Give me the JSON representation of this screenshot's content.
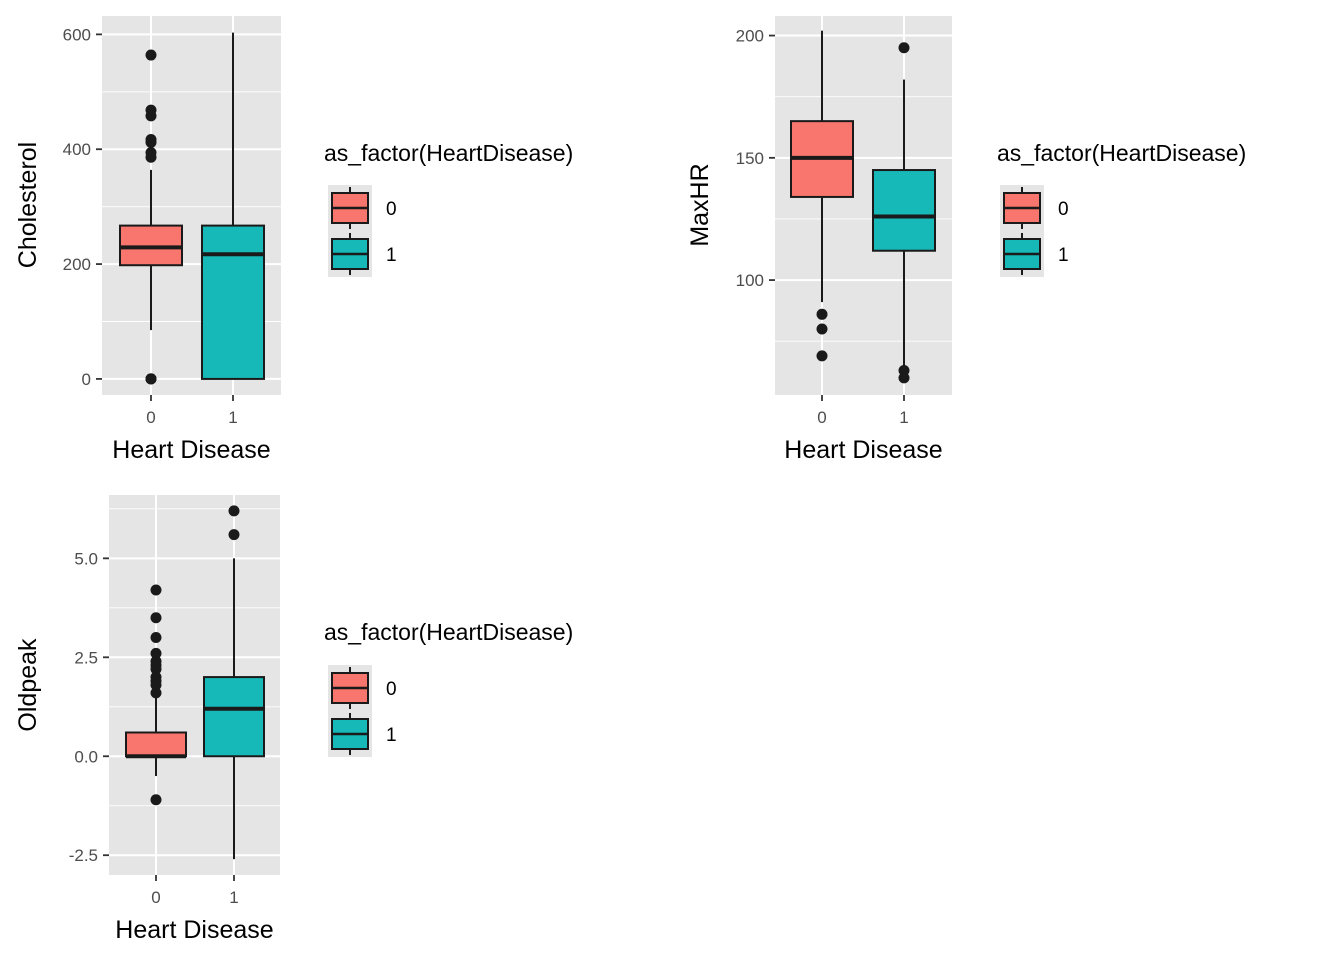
{
  "colors": {
    "panel_bg": "#e5e5e5",
    "grid": "#ffffff",
    "group_0": "#f8766d",
    "group_1": "#17b8b8",
    "stroke": "#1a1a1a"
  },
  "chart_data": [
    {
      "type": "boxplot",
      "xlabel": "Heart Disease",
      "ylabel": "Cholesterol",
      "categories": [
        "0",
        "1"
      ],
      "ylim": [
        -28,
        632
      ],
      "yticks": [
        0,
        200,
        400,
        600
      ],
      "ytick_labels": [
        "0",
        "200",
        "400",
        "600"
      ],
      "legend": {
        "title": "as_factor(HeartDisease)",
        "entries": [
          "0",
          "1"
        ]
      },
      "boxes": [
        {
          "category": "0",
          "q1": 198,
          "median": 229,
          "q3": 267,
          "whisker_low": 85,
          "whisker_high": 364,
          "outliers": [
            0,
            0,
            0,
            564,
            468,
            458,
            417,
            412,
            394,
            386
          ]
        },
        {
          "category": "1",
          "q1": 0,
          "median": 217,
          "q3": 267,
          "whisker_low": 0,
          "whisker_high": 603,
          "outliers": []
        }
      ]
    },
    {
      "type": "boxplot",
      "xlabel": "Heart Disease",
      "ylabel": "MaxHR",
      "categories": [
        "0",
        "1"
      ],
      "ylim": [
        53,
        208
      ],
      "yticks": [
        100,
        150,
        200
      ],
      "ytick_labels": [
        "100",
        "150",
        "200"
      ],
      "legend": {
        "title": "as_factor(HeartDisease)",
        "entries": [
          "0",
          "1"
        ]
      },
      "boxes": [
        {
          "category": "0",
          "q1": 134,
          "median": 150,
          "q3": 165,
          "whisker_low": 91,
          "whisker_high": 202,
          "outliers": [
            86,
            80,
            69
          ]
        },
        {
          "category": "1",
          "q1": 112,
          "median": 126,
          "q3": 145,
          "whisker_low": 65,
          "whisker_high": 182,
          "outliers": [
            195,
            63,
            60
          ]
        }
      ]
    },
    {
      "type": "boxplot",
      "xlabel": "Heart Disease",
      "ylabel": "Oldpeak",
      "categories": [
        "0",
        "1"
      ],
      "ylim": [
        -3.0,
        6.6
      ],
      "yticks": [
        -2.5,
        0.0,
        2.5,
        5.0
      ],
      "ytick_labels": [
        "-2.5",
        "0.0",
        "2.5",
        "5.0"
      ],
      "legend": {
        "title": "as_factor(HeartDisease)",
        "entries": [
          "0",
          "1"
        ]
      },
      "boxes": [
        {
          "category": "0",
          "q1": 0.0,
          "median": 0.0,
          "q3": 0.6,
          "whisker_low": -0.5,
          "whisker_high": 1.5,
          "outliers": [
            4.2,
            3.5,
            3.0,
            2.6,
            2.4,
            2.3,
            2.2,
            2.0,
            1.9,
            1.8,
            1.6,
            -1.1
          ]
        },
        {
          "category": "1",
          "q1": 0.0,
          "median": 1.2,
          "q3": 2.0,
          "whisker_low": -2.6,
          "whisker_high": 5.0,
          "outliers": [
            6.2,
            5.6
          ]
        }
      ]
    }
  ]
}
